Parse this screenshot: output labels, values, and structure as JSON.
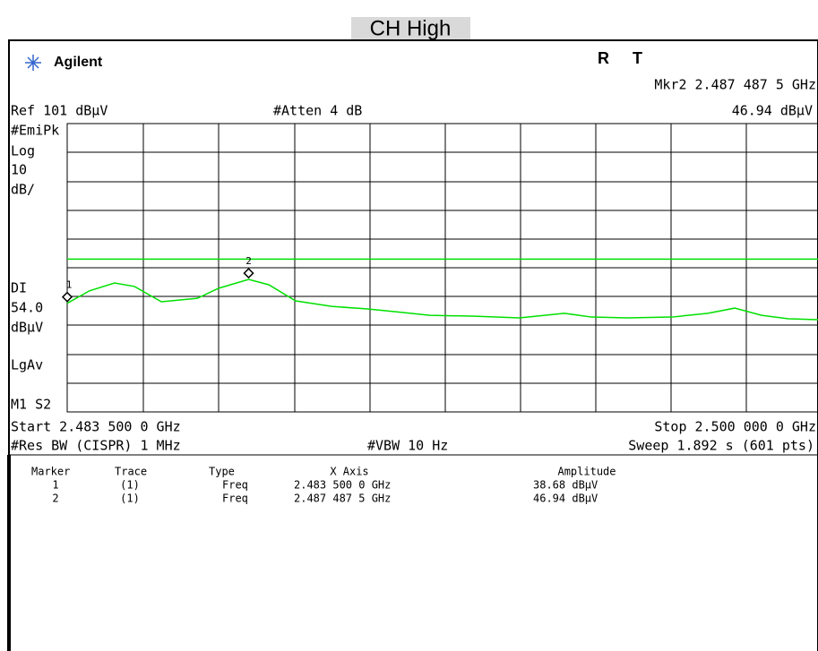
{
  "title": "CH High",
  "header": {
    "brand": "Agilent",
    "status_r": "R",
    "status_t": "T",
    "marker_readout_freq": "Mkr2  2.487 487 5 GHz",
    "ref_level": "Ref 101 dBµV",
    "attenuation": "#Atten 4 dB",
    "marker_readout_amp": "46.94 dBµV"
  },
  "left_labels": [
    "#EmiPk",
    "Log",
    "10",
    "dB/",
    "DI",
    "54.0",
    "dBµV",
    "LgAv",
    "M1  S2"
  ],
  "footer": {
    "start": "Start 2.483 500 0 GHz",
    "stop": "Stop 2.500 000 0 GHz",
    "rbw": "#Res BW (CISPR) 1 MHz",
    "vbw": "#VBW 10 Hz",
    "sweep": "Sweep 1.892 s (601 pts)"
  },
  "table": {
    "headers": [
      "Marker",
      "Trace",
      "Type",
      "X Axis",
      "Amplitude"
    ],
    "rows": [
      [
        "1",
        "(1)",
        "Freq",
        "2.483 500 0 GHz",
        "38.68 dBµV"
      ],
      [
        "2",
        "(1)",
        "Freq",
        "2.487 487 5 GHz",
        "46.94 dBµV"
      ]
    ]
  },
  "chart_data": {
    "type": "line",
    "xlim": [
      2.4835,
      2.5
    ],
    "ylim": [
      1,
      101
    ],
    "display_line": 54,
    "display_line_color": "#00e000",
    "series": [
      {
        "color": "#00e000",
        "x": [
          2.4835,
          2.48399,
          2.48454,
          2.48498,
          2.48557,
          2.48636,
          2.48683,
          2.4874875,
          2.48793,
          2.48852,
          2.48931,
          2.4901,
          2.49069,
          2.49147,
          2.49246,
          2.49344,
          2.49443,
          2.49502,
          2.49581,
          2.49679,
          2.49758,
          2.49817,
          2.49876,
          2.49935,
          2.5
        ],
        "values": [
          38.68,
          43.0,
          45.7,
          44.5,
          39.2,
          40.4,
          43.9,
          46.94,
          45.1,
          39.5,
          37.6,
          36.7,
          35.8,
          34.5,
          34.2,
          33.6,
          35.2,
          33.9,
          33.6,
          33.9,
          35.2,
          37.0,
          34.5,
          33.3,
          33.0
        ]
      }
    ],
    "markers": {
      "labels": [
        "1",
        "2"
      ],
      "x": [
        2.4835,
        2.4874875
      ],
      "values": [
        38.68,
        46.94
      ]
    }
  }
}
